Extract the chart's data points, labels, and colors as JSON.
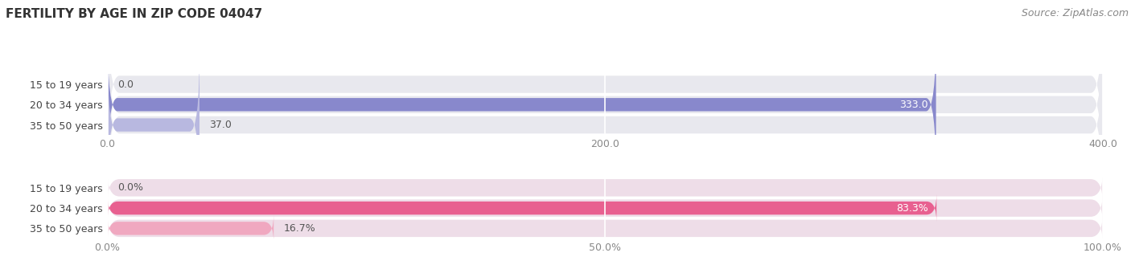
{
  "title": "FERTILITY BY AGE IN ZIP CODE 04047",
  "source": "Source: ZipAtlas.com",
  "top_bars": {
    "categories": [
      "15 to 19 years",
      "20 to 34 years",
      "35 to 50 years"
    ],
    "values": [
      0.0,
      333.0,
      37.0
    ],
    "max_val": 400.0,
    "xticks": [
      0.0,
      200.0,
      400.0
    ],
    "xtick_labels": [
      "0.0",
      "200.0",
      "400.0"
    ],
    "bar_color_dark": "#8888cc",
    "bar_color_light": "#b8b8e0",
    "bar_color_zero": "#b8b8e0"
  },
  "bottom_bars": {
    "categories": [
      "15 to 19 years",
      "20 to 34 years",
      "35 to 50 years"
    ],
    "values": [
      0.0,
      83.3,
      16.7
    ],
    "max_val": 100.0,
    "xticks": [
      0.0,
      50.0,
      100.0
    ],
    "xtick_labels": [
      "0.0%",
      "50.0%",
      "100.0%"
    ],
    "bar_color_dark": "#e86090",
    "bar_color_light": "#f0a8c0",
    "bar_color_zero": "#f0a8c0"
  },
  "bg_color": "#ffffff",
  "row_bg_color": "#e8e8ee",
  "row_bg_color_pink": "#eedde8",
  "title_fontsize": 11,
  "source_fontsize": 9,
  "tick_fontsize": 9,
  "cat_fontsize": 9
}
